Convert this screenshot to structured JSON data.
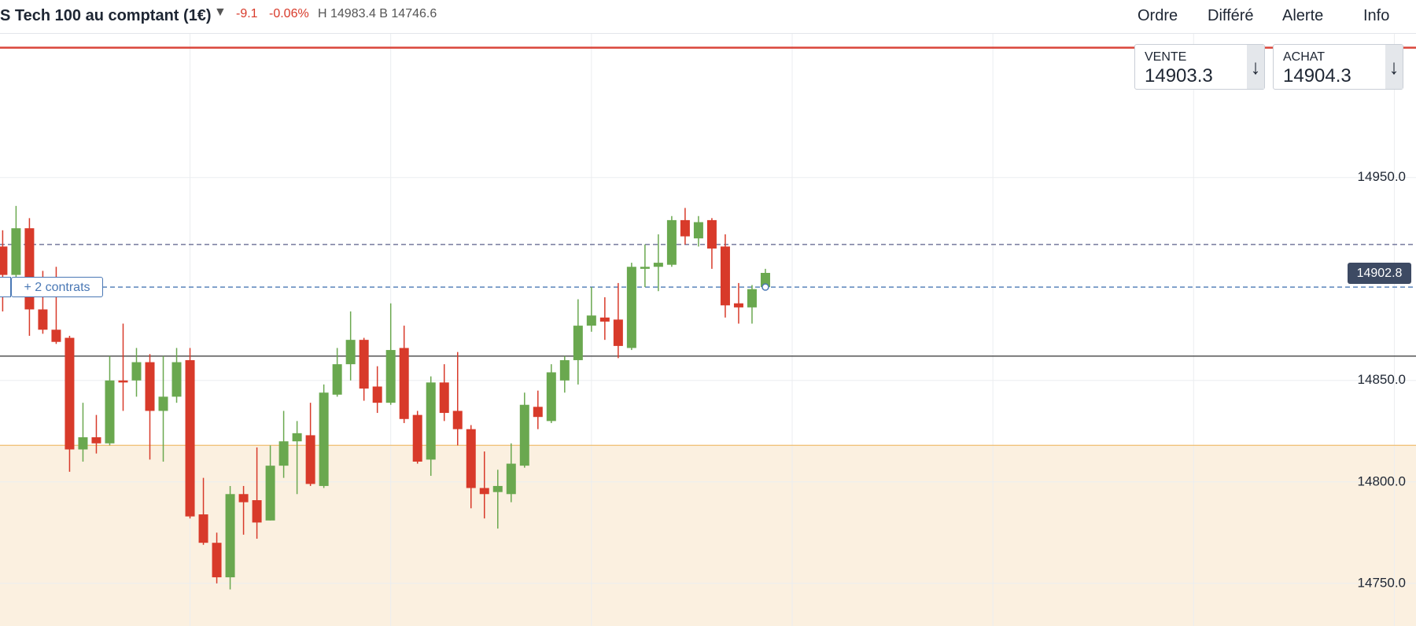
{
  "header": {
    "title": "S Tech 100 au comptant (1€)",
    "change": "-9.1",
    "change_pct": "-0.06%",
    "high_low": "H 14983.4 B 14746.6",
    "menu": [
      "Ordre",
      "Différé",
      "Alerte",
      "Info"
    ]
  },
  "quote_boxes": [
    {
      "label": "VENTE",
      "price": "14903.3"
    },
    {
      "label": "ACHAT",
      "price": "14904.3"
    }
  ],
  "annotations": {
    "position": "+ 2 contrats"
  },
  "chart_data": {
    "type": "candlestick",
    "up_color": "#6aa84f",
    "down_color": "#d83a2a",
    "categories": [
      null,
      null,
      null,
      null,
      null,
      null,
      null,
      null,
      null,
      null,
      null,
      null,
      null,
      null,
      null,
      null,
      null,
      null,
      null,
      null,
      null,
      null,
      null,
      null,
      null,
      null,
      null,
      null,
      null,
      null,
      null,
      null,
      null,
      null,
      null,
      null,
      null,
      null,
      null,
      null,
      null,
      null,
      null,
      null,
      null,
      null,
      null,
      null,
      null,
      null,
      null,
      null,
      null,
      null,
      null,
      null,
      null,
      null
    ],
    "open": [
      14916,
      14902,
      14925,
      14885,
      14875,
      14871,
      14816,
      14822,
      14819,
      14850,
      14850,
      14859,
      14835,
      14842,
      14860,
      14784,
      14770,
      14753,
      14794,
      14791,
      14781,
      14808,
      14820,
      14823,
      14798,
      14843,
      14858,
      14870,
      14847,
      14839,
      14866,
      14833,
      14811,
      14849,
      14835,
      14826,
      14797,
      14795,
      14794,
      14808,
      14837,
      14830,
      14850,
      14860,
      14877,
      14881,
      14880,
      14866,
      14905,
      14906,
      14907,
      14929,
      14920,
      14929,
      14916,
      14888,
      14886,
      14896
    ],
    "high": [
      14924,
      14936,
      14930,
      14904,
      14906,
      14872,
      14839,
      14833,
      14862,
      14878,
      14866,
      14863,
      14862,
      14866,
      14866,
      14802,
      14775,
      14798,
      14798,
      14817,
      14818,
      14835,
      14830,
      14839,
      14848,
      14866,
      14884,
      14871,
      14857,
      14888,
      14877,
      14835,
      14852,
      14858,
      14864,
      14828,
      14815,
      14806,
      14819,
      14844,
      14845,
      14858,
      14862,
      14890,
      14896,
      14891,
      14898,
      14908,
      14917,
      14922,
      14931,
      14935,
      14931,
      14930,
      14922,
      14898,
      14897,
      14905
    ],
    "low": [
      14884,
      14895,
      14872,
      14873,
      14868,
      14805,
      14810,
      14814,
      14818,
      14835,
      14842,
      14811,
      14810,
      14839,
      14782,
      14769,
      14750,
      14747,
      14774,
      14772,
      14781,
      14802,
      14794,
      14798,
      14797,
      14842,
      14850,
      14840,
      14834,
      14838,
      14829,
      14809,
      14803,
      14830,
      14818,
      14787,
      14782,
      14777,
      14790,
      14807,
      14826,
      14829,
      14844,
      14848,
      14874,
      14870,
      14861,
      14865,
      14896,
      14894,
      14906,
      14917,
      14916,
      14905,
      14881,
      14878,
      14878,
      14895
    ],
    "close": [
      14902,
      14925,
      14885,
      14875,
      14869,
      14816,
      14822,
      14819,
      14850,
      14849,
      14859,
      14835,
      14842,
      14859,
      14783,
      14770,
      14753,
      14794,
      14790,
      14780,
      14808,
      14820,
      14824,
      14799,
      14844,
      14858,
      14870,
      14846,
      14839,
      14865,
      14831,
      14810,
      14849,
      14834,
      14826,
      14797,
      14794,
      14798,
      14809,
      14838,
      14832,
      14854,
      14860,
      14877,
      14882,
      14879,
      14867,
      14906,
      14906,
      14908,
      14929,
      14921,
      14928,
      14915,
      14887,
      14886,
      14895,
      14903
    ],
    "ylim": [
      14729,
      15021
    ],
    "yticks": [
      {
        "value": 14750,
        "label": "14750.0"
      },
      {
        "value": 14800,
        "label": "14800.0"
      },
      {
        "value": 14850,
        "label": "14850.0"
      },
      {
        "value": 14950,
        "label": "14950.0"
      }
    ],
    "grid": true,
    "last_price": 14902.8,
    "levels": [
      {
        "value": 15014,
        "color": "#d9453a",
        "style": "solid"
      },
      {
        "value": 14917,
        "color": "#5a5f8a",
        "style": "dashed"
      },
      {
        "value": 14896,
        "color": "#4a78b5",
        "style": "dashed"
      },
      {
        "value": 14862,
        "color": "#444444",
        "style": "solid"
      },
      {
        "value": 14818,
        "color": "#f0c27a",
        "style": "solid",
        "fill_below": "#fbf0e0"
      }
    ]
  }
}
